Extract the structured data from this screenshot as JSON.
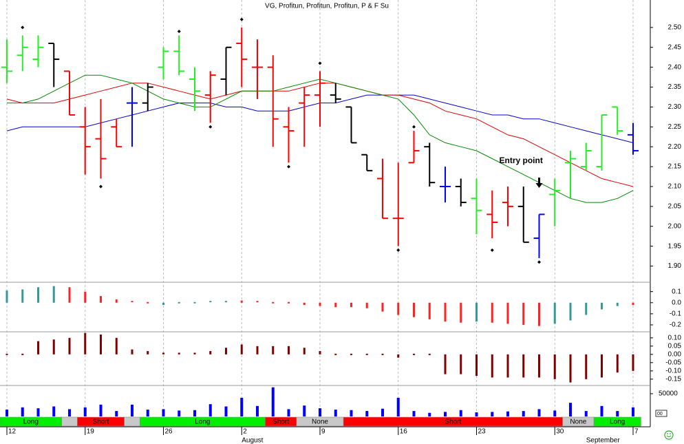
{
  "chart_data": [
    {
      "type": "ohlc",
      "title": "VG, Profitun, Profitun, Profitun, P & F Su",
      "categories": [
        "12",
        null,
        null,
        null,
        null,
        "19",
        null,
        null,
        null,
        null,
        "26",
        null,
        null,
        null,
        null,
        "2",
        null,
        null,
        null,
        null,
        "9",
        null,
        null,
        null,
        null,
        "16",
        null,
        null,
        null,
        null,
        "23",
        null,
        null,
        null,
        null,
        "30",
        null,
        null,
        null,
        null,
        "7"
      ],
      "months": [
        {
          "label": "August",
          "index": 15
        },
        {
          "label": "September",
          "index": 37
        }
      ],
      "open": [
        2.4,
        2.43,
        2.42,
        2.46,
        2.39,
        2.25,
        2.22,
        2.25,
        2.31,
        2.31,
        2.4,
        2.44,
        2.37,
        2.33,
        2.37,
        2.46,
        2.4,
        2.4,
        2.25,
        2.31,
        2.33,
        2.33,
        2.3,
        2.18,
        2.12,
        2.02,
        2.16,
        2.2,
        2.1,
        2.1,
        2.07,
        2.03,
        2.06,
        2.05,
        1.97,
        2.08,
        2.16,
        2.15,
        2.15,
        2.3,
        2.23
      ],
      "high": [
        2.47,
        2.48,
        2.48,
        2.46,
        2.39,
        2.3,
        2.32,
        2.27,
        2.35,
        2.36,
        2.45,
        2.48,
        2.4,
        2.39,
        2.45,
        2.5,
        2.47,
        2.43,
        2.3,
        2.35,
        2.39,
        2.36,
        2.3,
        2.18,
        2.17,
        2.16,
        2.24,
        2.21,
        2.15,
        2.12,
        2.12,
        2.09,
        2.1,
        2.1,
        2.03,
        2.12,
        2.19,
        2.21,
        2.28,
        2.3,
        2.26
      ],
      "low": [
        2.36,
        2.39,
        2.4,
        2.35,
        2.28,
        2.13,
        2.12,
        2.2,
        2.2,
        2.29,
        2.37,
        2.38,
        2.29,
        2.26,
        2.33,
        2.35,
        2.32,
        2.2,
        2.16,
        2.2,
        2.25,
        2.31,
        2.21,
        2.14,
        2.02,
        1.95,
        2.16,
        2.1,
        2.06,
        2.05,
        1.98,
        1.97,
        2.0,
        1.96,
        1.92,
        2.0,
        2.07,
        2.14,
        2.14,
        2.23,
        2.18
      ],
      "close": [
        2.39,
        2.45,
        2.45,
        2.42,
        2.28,
        2.2,
        2.17,
        2.2,
        2.31,
        2.35,
        2.44,
        2.39,
        2.34,
        2.38,
        2.45,
        2.42,
        2.4,
        2.27,
        2.24,
        2.33,
        2.36,
        2.32,
        2.21,
        2.14,
        2.02,
        2.02,
        2.19,
        2.11,
        2.1,
        2.06,
        2.04,
        2.01,
        2.05,
        1.96,
        2.03,
        2.09,
        2.17,
        2.19,
        2.28,
        2.24,
        2.19
      ],
      "bar_colors": [
        "#22ee22",
        "#22ee22",
        "#22ee22",
        "#000000",
        "#ff0000",
        "#ff0000",
        "#ff0000",
        "#ff0000",
        "#0000ff",
        "#000000",
        "#22ee22",
        "#22ee22",
        "#22ee22",
        "#ff0000",
        "#000000",
        "#ff0000",
        "#ff0000",
        "#ff0000",
        "#ff0000",
        "#ff0000",
        "#ff0000",
        "#000000",
        "#000000",
        "#000000",
        "#ff0000",
        "#ff0000",
        "#ff0000",
        "#000000",
        "#0000ff",
        "#000000",
        "#22ee22",
        "#ff0000",
        "#ff0000",
        "#000000",
        "#0000ff",
        "#22ee22",
        "#22ee22",
        "#22ee22",
        "#22ee22",
        "#22ee22",
        "#0000ff"
      ],
      "lines": [
        {
          "color": "#0000cc",
          "values": [
            2.24,
            2.25,
            2.25,
            2.25,
            2.25,
            2.25,
            2.26,
            2.27,
            2.28,
            2.29,
            2.3,
            2.31,
            2.31,
            2.31,
            2.3,
            2.3,
            2.29,
            2.29,
            2.29,
            2.3,
            2.31,
            2.31,
            2.32,
            2.33,
            2.33,
            2.33,
            2.33,
            2.32,
            2.31,
            2.3,
            2.29,
            2.28,
            2.28,
            2.27,
            2.27,
            2.26,
            2.25,
            2.24,
            2.23,
            2.22,
            2.21
          ]
        },
        {
          "color": "#dd0000",
          "values": [
            2.32,
            2.31,
            2.31,
            2.31,
            2.32,
            2.33,
            2.34,
            2.35,
            2.36,
            2.36,
            2.35,
            2.34,
            2.33,
            2.32,
            2.33,
            2.34,
            2.34,
            2.34,
            2.34,
            2.35,
            2.36,
            2.36,
            2.35,
            2.34,
            2.33,
            2.33,
            2.32,
            2.31,
            2.29,
            2.28,
            2.27,
            2.25,
            2.23,
            2.22,
            2.2,
            2.18,
            2.16,
            2.14,
            2.12,
            2.11,
            2.1
          ]
        },
        {
          "color": "#008800",
          "values": [
            2.31,
            2.31,
            2.32,
            2.34,
            2.36,
            2.38,
            2.38,
            2.37,
            2.36,
            2.34,
            2.32,
            2.31,
            2.3,
            2.3,
            2.32,
            2.34,
            2.34,
            2.34,
            2.35,
            2.36,
            2.37,
            2.36,
            2.35,
            2.34,
            2.33,
            2.32,
            2.28,
            2.23,
            2.21,
            2.2,
            2.19,
            2.17,
            2.15,
            2.13,
            2.11,
            2.09,
            2.07,
            2.06,
            2.06,
            2.07,
            2.09
          ]
        }
      ],
      "markers": [
        {
          "index": 1,
          "value": 2.5
        },
        {
          "index": 6,
          "value": 2.1
        },
        {
          "index": 11,
          "value": 2.49
        },
        {
          "index": 13,
          "value": 2.25
        },
        {
          "index": 15,
          "value": 2.52
        },
        {
          "index": 18,
          "value": 2.15
        },
        {
          "index": 20,
          "value": 2.41
        },
        {
          "index": 25,
          "value": 1.94
        },
        {
          "index": 26,
          "value": 2.25
        },
        {
          "index": 31,
          "value": 1.94
        },
        {
          "index": 34,
          "value": 1.91
        }
      ],
      "annotation": {
        "text": "Entry point",
        "index": 34
      },
      "ylim": [
        1.868,
        2.569
      ],
      "yticks": [
        {
          "value": 1.9,
          "label": "1.90"
        },
        1.95,
        {
          "value": 2,
          "label": "2.00"
        },
        2.05,
        {
          "value": 2.1,
          "label": "2.10"
        },
        2.15,
        {
          "value": 2.2,
          "label": "2.20"
        },
        2.25,
        {
          "value": 2.3,
          "label": "2.30"
        },
        2.35,
        {
          "value": 2.4,
          "label": "2.40"
        },
        2.45,
        {
          "value": 2.5,
          "label": "2.50"
        }
      ],
      "grid": true
    },
    {
      "type": "bar",
      "values": [
        0.11,
        0.12,
        0.14,
        0.15,
        0.14,
        0.1,
        0.06,
        0.03,
        0.01,
        -0.01,
        -0.02,
        -0.01,
        -0.01,
        0.01,
        0.01,
        0.02,
        0.01,
        0.0,
        -0.01,
        -0.02,
        -0.03,
        -0.04,
        -0.04,
        -0.05,
        -0.08,
        -0.11,
        -0.13,
        -0.15,
        -0.17,
        -0.18,
        -0.17,
        -0.18,
        -0.19,
        -0.2,
        -0.21,
        -0.19,
        -0.16,
        -0.11,
        -0.06,
        -0.03,
        -0.02
      ],
      "colors": [
        "#339999",
        "#339999",
        "#339999",
        "#339999",
        "#ff2222",
        "#ff2222",
        "#ff2222",
        "#ff2222",
        "#ff2222",
        "#ff2222",
        "#339999",
        "#339999",
        "#339999",
        "#339999",
        "#339999",
        "#ff2222",
        "#ff2222",
        "#ff2222",
        "#ff2222",
        "#ff2222",
        "#ff2222",
        "#ff2222",
        "#ff2222",
        "#ff2222",
        "#ff2222",
        "#ff2222",
        "#ff2222",
        "#ff2222",
        "#ff2222",
        "#ff2222",
        "#339999",
        "#ff2222",
        "#ff2222",
        "#ff2222",
        "#ff2222",
        "#339999",
        "#339999",
        "#339999",
        "#339999",
        "#339999",
        "#ff2222"
      ],
      "ylim": [
        -0.25,
        0.16
      ],
      "yticks": [
        0.1,
        {
          "value": 0,
          "label": "0.0"
        },
        -0.1,
        -0.2
      ]
    },
    {
      "type": "bar",
      "color": "#800000",
      "values": [
        0.0,
        0.0,
        0.08,
        0.09,
        0.1,
        0.13,
        0.12,
        0.1,
        0.03,
        0.02,
        0.01,
        0.01,
        0.01,
        0.02,
        0.04,
        0.06,
        0.05,
        0.05,
        0.05,
        0.04,
        0.02,
        0.0,
        0.0,
        0.0,
        0.0,
        -0.02,
        0.0,
        0.0,
        -0.12,
        -0.12,
        -0.13,
        -0.14,
        -0.14,
        -0.14,
        -0.14,
        -0.15,
        -0.17,
        -0.15,
        -0.14,
        -0.11,
        -0.1
      ],
      "ylim": [
        -0.18,
        0.12
      ],
      "yticks": [
        {
          "value": 0.1,
          "label": "0.10"
        },
        0.05,
        {
          "value": 0,
          "label": "0.00"
        },
        -0.05,
        {
          "value": -0.1,
          "label": "-0.10"
        },
        -0.15
      ]
    },
    {
      "type": "bar",
      "color": "#0000ff",
      "values": [
        15000,
        20000,
        18000,
        22000,
        16000,
        20000,
        26000,
        12000,
        26000,
        15000,
        16000,
        13000,
        14000,
        27000,
        22000,
        41000,
        23000,
        64000,
        16000,
        24000,
        18000,
        15000,
        14000,
        12000,
        17000,
        41000,
        12000,
        8000,
        10000,
        14000,
        9000,
        10000,
        11000,
        12000,
        16000,
        13000,
        30000,
        12000,
        23000,
        12000,
        20000
      ],
      "ylim": [
        0,
        65000
      ],
      "yticks": [
        50000
      ]
    }
  ],
  "signal_bar": [
    {
      "label": "Long",
      "color": "#00ee00",
      "from": 0,
      "to": 3
    },
    {
      "label": null,
      "color": "#c8c8c8",
      "from": 4,
      "to": 4
    },
    {
      "label": "Short",
      "color": "#ff0000",
      "from": 5,
      "to": 7
    },
    {
      "label": null,
      "color": "#c8c8c8",
      "from": 8,
      "to": 8
    },
    {
      "label": "Long",
      "color": "#00ee00",
      "from": 9,
      "to": 16
    },
    {
      "label": "Short",
      "color": "#ff0000",
      "from": 17,
      "to": 18
    },
    {
      "label": "None",
      "color": "#c8c8c8",
      "from": 19,
      "to": 21
    },
    {
      "label": "Short",
      "color": "#ff0000",
      "from": 22,
      "to": 35
    },
    {
      "label": "None",
      "color": "#c8c8c8",
      "from": 36,
      "to": 37
    },
    {
      "label": "Long",
      "color": "#00ee00",
      "from": 38,
      "to": 40
    }
  ],
  "corner_label": "00"
}
